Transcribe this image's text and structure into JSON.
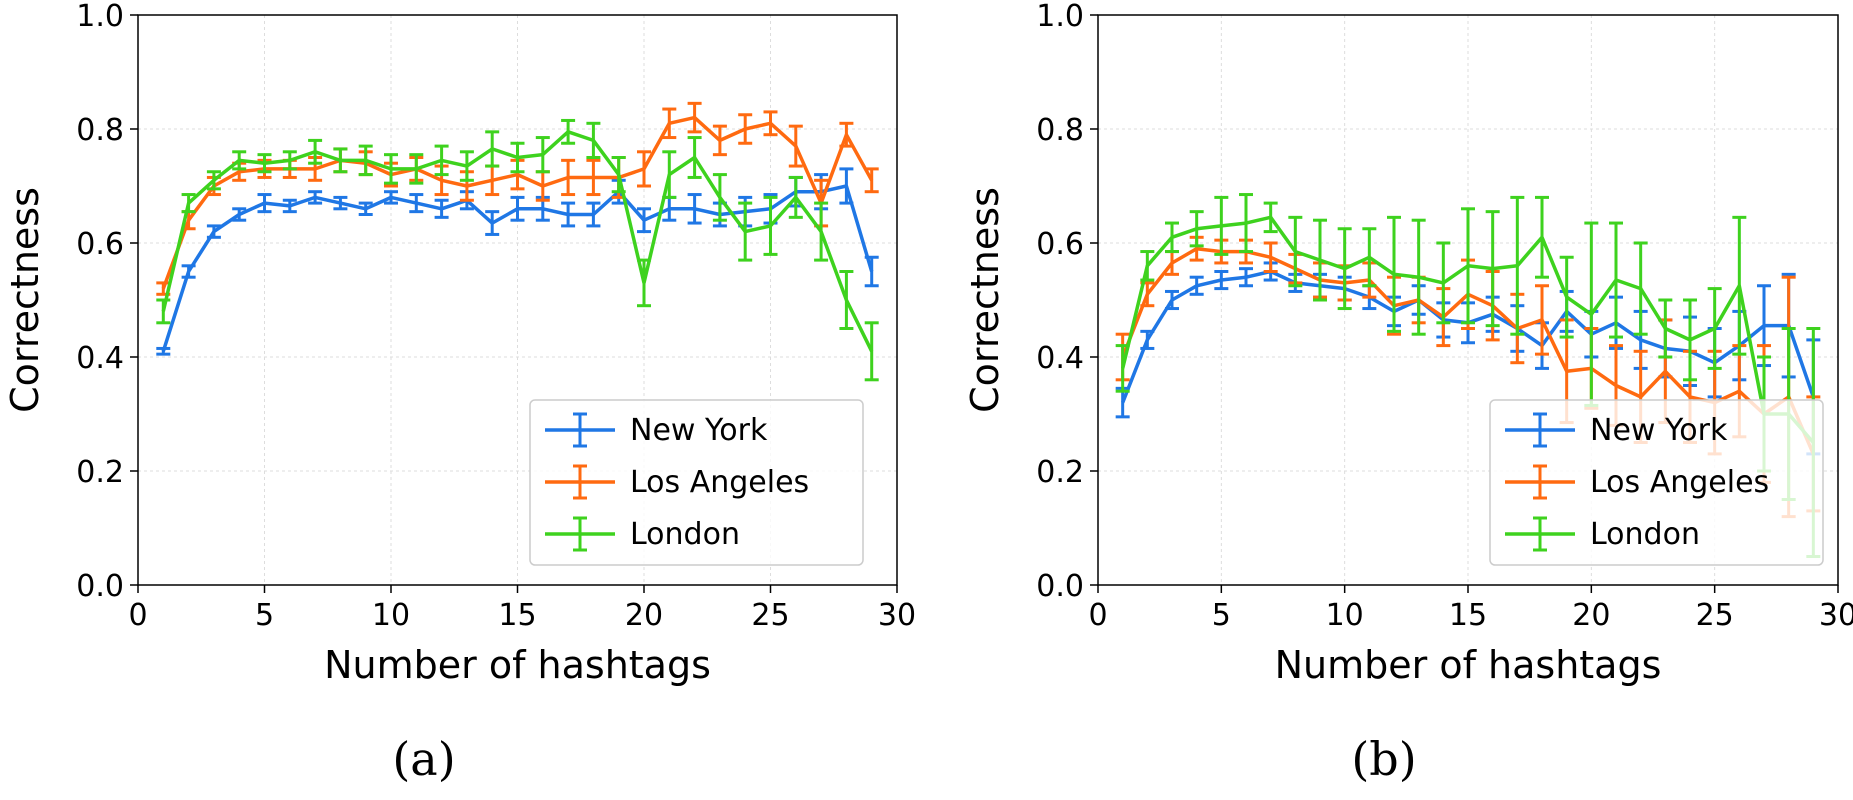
{
  "chart_data": [
    {
      "type": "line",
      "caption": "(a)",
      "xlabel": "Number of hashtags",
      "ylabel": "Correctness",
      "xlim": [
        0,
        30
      ],
      "ylim": [
        0.0,
        1.0
      ],
      "xticks": [
        "0",
        "5",
        "10",
        "15",
        "20",
        "25",
        "30"
      ],
      "yticks": [
        "0.0",
        "0.2",
        "0.4",
        "0.6",
        "0.8",
        "1.0"
      ],
      "grid": true,
      "legend_position": "lower-right",
      "x": [
        1,
        2,
        3,
        4,
        5,
        6,
        7,
        8,
        9,
        10,
        11,
        12,
        13,
        14,
        15,
        16,
        17,
        18,
        19,
        20,
        21,
        22,
        23,
        24,
        25,
        26,
        27,
        28,
        29
      ],
      "series": [
        {
          "name": "New York",
          "color": "#1f77e5",
          "values": [
            0.41,
            0.55,
            0.62,
            0.65,
            0.67,
            0.665,
            0.68,
            0.67,
            0.66,
            0.68,
            0.67,
            0.66,
            0.675,
            0.635,
            0.66,
            0.66,
            0.65,
            0.65,
            0.69,
            0.64,
            0.66,
            0.66,
            0.65,
            0.655,
            0.66,
            0.69,
            0.69,
            0.7,
            0.55
          ],
          "errors": [
            0.005,
            0.01,
            0.01,
            0.01,
            0.015,
            0.01,
            0.01,
            0.01,
            0.01,
            0.01,
            0.015,
            0.015,
            0.015,
            0.02,
            0.02,
            0.02,
            0.02,
            0.02,
            0.02,
            0.02,
            0.02,
            0.025,
            0.02,
            0.025,
            0.025,
            0.025,
            0.03,
            0.03,
            0.025
          ]
        },
        {
          "name": "Los Angeles",
          "color": "#ff6a10",
          "values": [
            0.52,
            0.64,
            0.7,
            0.725,
            0.73,
            0.73,
            0.73,
            0.745,
            0.74,
            0.72,
            0.73,
            0.71,
            0.7,
            0.71,
            0.72,
            0.7,
            0.715,
            0.715,
            0.715,
            0.73,
            0.81,
            0.82,
            0.78,
            0.8,
            0.81,
            0.77,
            0.67,
            0.79,
            0.71
          ],
          "errors": [
            0.01,
            0.015,
            0.015,
            0.015,
            0.015,
            0.015,
            0.02,
            0.02,
            0.02,
            0.02,
            0.02,
            0.025,
            0.025,
            0.025,
            0.025,
            0.025,
            0.03,
            0.03,
            0.035,
            0.03,
            0.025,
            0.025,
            0.025,
            0.025,
            0.02,
            0.035,
            0.04,
            0.02,
            0.02
          ]
        },
        {
          "name": "London",
          "color": "#3ed21e",
          "values": [
            0.48,
            0.67,
            0.71,
            0.745,
            0.74,
            0.745,
            0.76,
            0.745,
            0.745,
            0.73,
            0.73,
            0.745,
            0.735,
            0.765,
            0.75,
            0.755,
            0.795,
            0.78,
            0.72,
            0.53,
            0.72,
            0.75,
            0.68,
            0.62,
            0.63,
            0.68,
            0.62,
            0.5,
            0.41
          ],
          "errors": [
            0.02,
            0.015,
            0.015,
            0.015,
            0.015,
            0.015,
            0.02,
            0.02,
            0.025,
            0.025,
            0.025,
            0.025,
            0.025,
            0.03,
            0.025,
            0.03,
            0.02,
            0.03,
            0.03,
            0.04,
            0.04,
            0.035,
            0.04,
            0.05,
            0.05,
            0.035,
            0.05,
            0.05,
            0.05
          ]
        }
      ]
    },
    {
      "type": "line",
      "caption": "(b)",
      "xlabel": "Number of hashtags",
      "ylabel": "Correctness",
      "xlim": [
        0,
        30
      ],
      "ylim": [
        0.0,
        1.0
      ],
      "xticks": [
        "0",
        "5",
        "10",
        "15",
        "20",
        "25",
        "30"
      ],
      "yticks": [
        "0.0",
        "0.2",
        "0.4",
        "0.6",
        "0.8",
        "1.0"
      ],
      "grid": true,
      "legend_position": "lower-right",
      "x": [
        1,
        2,
        3,
        4,
        5,
        6,
        7,
        8,
        9,
        10,
        11,
        12,
        13,
        14,
        15,
        16,
        17,
        18,
        19,
        20,
        21,
        22,
        23,
        24,
        25,
        26,
        27,
        28,
        29
      ],
      "series": [
        {
          "name": "New York",
          "color": "#1f77e5",
          "values": [
            0.32,
            0.43,
            0.5,
            0.525,
            0.535,
            0.54,
            0.55,
            0.53,
            0.525,
            0.52,
            0.505,
            0.48,
            0.5,
            0.465,
            0.46,
            0.475,
            0.45,
            0.42,
            0.48,
            0.44,
            0.46,
            0.43,
            0.415,
            0.41,
            0.39,
            0.42,
            0.455,
            0.455,
            0.33
          ],
          "errors": [
            0.025,
            0.015,
            0.015,
            0.015,
            0.015,
            0.015,
            0.015,
            0.015,
            0.02,
            0.02,
            0.02,
            0.025,
            0.025,
            0.03,
            0.035,
            0.03,
            0.04,
            0.04,
            0.035,
            0.04,
            0.045,
            0.05,
            0.05,
            0.06,
            0.06,
            0.06,
            0.07,
            0.09,
            0.1
          ]
        },
        {
          "name": "Los Angeles",
          "color": "#ff6a10",
          "values": [
            0.4,
            0.51,
            0.565,
            0.59,
            0.585,
            0.585,
            0.575,
            0.555,
            0.535,
            0.53,
            0.535,
            0.49,
            0.5,
            0.47,
            0.51,
            0.49,
            0.45,
            0.465,
            0.375,
            0.38,
            0.35,
            0.33,
            0.375,
            0.33,
            0.32,
            0.34,
            0.3,
            0.33,
            0.23
          ],
          "errors": [
            0.04,
            0.02,
            0.02,
            0.02,
            0.02,
            0.02,
            0.025,
            0.025,
            0.03,
            0.03,
            0.03,
            0.05,
            0.04,
            0.05,
            0.06,
            0.06,
            0.06,
            0.06,
            0.09,
            0.07,
            0.07,
            0.08,
            0.09,
            0.08,
            0.09,
            0.08,
            0.12,
            0.21,
            0.1
          ]
        },
        {
          "name": "London",
          "color": "#3ed21e",
          "values": [
            0.38,
            0.56,
            0.61,
            0.625,
            0.63,
            0.635,
            0.645,
            0.585,
            0.57,
            0.555,
            0.575,
            0.545,
            0.54,
            0.53,
            0.56,
            0.555,
            0.56,
            0.61,
            0.505,
            0.475,
            0.535,
            0.52,
            0.45,
            0.43,
            0.45,
            0.525,
            0.3,
            0.3,
            0.25
          ],
          "errors": [
            0.04,
            0.025,
            0.025,
            0.03,
            0.05,
            0.05,
            0.025,
            0.06,
            0.07,
            0.07,
            0.05,
            0.1,
            0.1,
            0.07,
            0.1,
            0.1,
            0.12,
            0.07,
            0.07,
            0.16,
            0.1,
            0.08,
            0.05,
            0.07,
            0.07,
            0.12,
            0.1,
            0.15,
            0.2
          ]
        }
      ]
    }
  ]
}
